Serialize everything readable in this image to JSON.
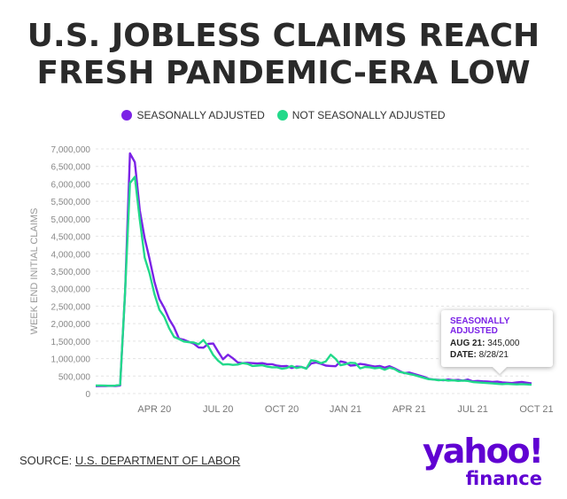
{
  "title_line1": "U.S. JOBLESS CLAIMS REACH",
  "title_line2": "FRESH PANDEMIC-ERA LOW",
  "legend": [
    {
      "label": "SEASONALLY ADJUSTED",
      "color": "#7b22e6"
    },
    {
      "label": "NOT SEASONALLY ADJUSTED",
      "color": "#22d98a"
    }
  ],
  "tooltip": {
    "title": "SEASONALLY ADJUSTED",
    "row1_key": "AUG 21:",
    "row1_val": "345,000",
    "row2_key": "DATE:",
    "row2_val": "8/28/21"
  },
  "source_prefix": "SOURCE:",
  "source_link": "U.S. DEPARTMENT OF LABOR",
  "logo_main": "yahoo!",
  "logo_sub": "finance",
  "chart_data": {
    "type": "line",
    "ylabel": "WEEK END INITIAL CLAIMS",
    "xlabel": "",
    "ylim": [
      0,
      7000000
    ],
    "yticks": [
      0,
      500000,
      1000000,
      1500000,
      2000000,
      2500000,
      3000000,
      3500000,
      4000000,
      4500000,
      5000000,
      5500000,
      6000000,
      6500000,
      7000000
    ],
    "ytick_labels": [
      "0",
      "500,000",
      "1,000,000",
      "1,500,000",
      "2,000,000",
      "2,500,000",
      "3,000,000",
      "3,500,000",
      "4,000,000",
      "4,500,000",
      "5,000,000",
      "5,500,000",
      "6,000,000",
      "6,500,000",
      "7,000,000"
    ],
    "xticks": [
      {
        "label": "APR 20",
        "week": 12
      },
      {
        "label": "JUL 20",
        "week": 25
      },
      {
        "label": "OCT 20",
        "week": 38
      },
      {
        "label": "JAN 21",
        "week": 51
      },
      {
        "label": "APR 21",
        "week": 64
      },
      {
        "label": "JUL 21",
        "week": 77
      },
      {
        "label": "OCT 21",
        "week": 90
      }
    ],
    "grid": true,
    "legend_position": "top-center",
    "series": [
      {
        "name": "SEASONALLY ADJUSTED",
        "color": "#7b22e6",
        "values": [
          210000,
          215000,
          212000,
          220000,
          215000,
          230000,
          2900000,
          6870000,
          6620000,
          5240000,
          4440000,
          3850000,
          3200000,
          2700000,
          2450000,
          2130000,
          1900000,
          1570000,
          1540000,
          1480000,
          1430000,
          1320000,
          1310000,
          1420000,
          1430000,
          1200000,
          980000,
          1110000,
          1010000,
          890000,
          870000,
          880000,
          870000,
          860000,
          870000,
          840000,
          840000,
          800000,
          780000,
          790000,
          730000,
          770000,
          760000,
          720000,
          860000,
          890000,
          850000,
          800000,
          790000,
          780000,
          920000,
          890000,
          800000,
          810000,
          850000,
          830000,
          800000,
          770000,
          790000,
          740000,
          780000,
          720000,
          650000,
          580000,
          600000,
          560000,
          520000,
          480000,
          420000,
          400000,
          390000,
          380000,
          400000,
          380000,
          390000,
          370000,
          400000,
          350000,
          360000,
          350000,
          345000,
          330000,
          340000,
          320000,
          310000,
          300000,
          320000,
          330000,
          310000,
          290000
        ],
        "x_start_week": 0
      },
      {
        "name": "NOT SEASONALLY ADJUSTED",
        "color": "#22d98a",
        "values": [
          230000,
          230000,
          225000,
          220000,
          225000,
          250000,
          2920000,
          6020000,
          6200000,
          4970000,
          3890000,
          3440000,
          2850000,
          2400000,
          2200000,
          1870000,
          1620000,
          1560000,
          1490000,
          1470000,
          1460000,
          1410000,
          1530000,
          1350000,
          1100000,
          940000,
          830000,
          840000,
          820000,
          830000,
          870000,
          850000,
          790000,
          800000,
          810000,
          770000,
          750000,
          750000,
          710000,
          730000,
          790000,
          730000,
          760000,
          710000,
          950000,
          930000,
          870000,
          920000,
          1110000,
          990000,
          810000,
          840000,
          880000,
          870000,
          720000,
          760000,
          750000,
          720000,
          740000,
          680000,
          740000,
          700000,
          620000,
          590000,
          560000,
          530000,
          490000,
          450000,
          410000,
          400000,
          380000,
          390000,
          370000,
          380000,
          360000,
          370000,
          360000,
          330000,
          320000,
          310000,
          300000,
          290000,
          280000,
          270000,
          280000,
          270000,
          260000,
          270000,
          260000,
          250000
        ],
        "x_start_week": 0
      }
    ]
  }
}
